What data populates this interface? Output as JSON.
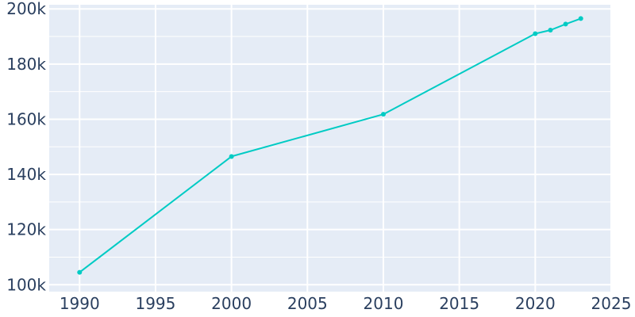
{
  "colors": {
    "plot_background": "#e5ecf6",
    "grid": "#ffffff",
    "line": "#00cbc4",
    "tick_text": "#2a3f5f"
  },
  "chart_data": {
    "type": "line",
    "title": "",
    "xlabel": "",
    "ylabel": "",
    "grid": true,
    "legend": "none",
    "xlim": [
      1988,
      2025
    ],
    "ylim": [
      97500,
      201500
    ],
    "x_ticks": [
      1990,
      1995,
      2000,
      2005,
      2010,
      2015,
      2020,
      2025
    ],
    "x_tick_labels": [
      "1990",
      "1995",
      "2000",
      "2005",
      "2010",
      "2015",
      "2020",
      "2025"
    ],
    "y_ticks": [
      100000,
      120000,
      140000,
      160000,
      180000,
      200000
    ],
    "y_tick_labels": [
      "100k",
      "120k",
      "140k",
      "160k",
      "180k",
      "200k"
    ],
    "series": [
      {
        "x": [
          1990,
          2000,
          2010,
          2020,
          2021,
          2022,
          2023
        ],
        "values": [
          104500,
          146500,
          161800,
          191000,
          192300,
          194500,
          196500
        ]
      }
    ]
  }
}
